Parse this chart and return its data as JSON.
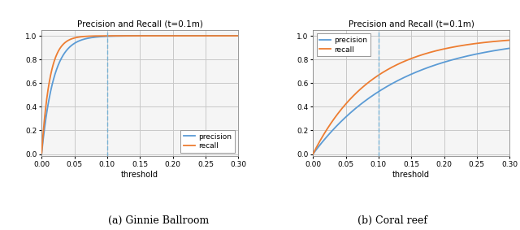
{
  "subplot_titles": [
    "Precision and Recall (t=0.1m)",
    "Precision and Recall (t=0.1m)"
  ],
  "xlabel": "threshold",
  "xlim": [
    0.0,
    0.3
  ],
  "ylim": [
    -0.02,
    1.05
  ],
  "xticks": [
    0.0,
    0.05,
    0.1,
    0.15,
    0.2,
    0.25,
    0.3
  ],
  "yticks": [
    0.0,
    0.2,
    0.4,
    0.6,
    0.8,
    1.0
  ],
  "vline_x": 0.1,
  "vline_color": "#6baed6",
  "vline_style": "--",
  "grid_color": "#c8c8c8",
  "bg_color": "#f5f5f5",
  "precision_color": "#5b9bd5",
  "recall_color": "#ed7d31",
  "caption_left": "(a) Ginnie Ballroom",
  "caption_right": "(b) Coral reef",
  "legend_loc_left": "lower right",
  "legend_loc_right": "upper left",
  "ginnie_recall_k": 80,
  "ginnie_precision_k": 55,
  "coral_recall_k": 11,
  "coral_precision_k": 7.5
}
